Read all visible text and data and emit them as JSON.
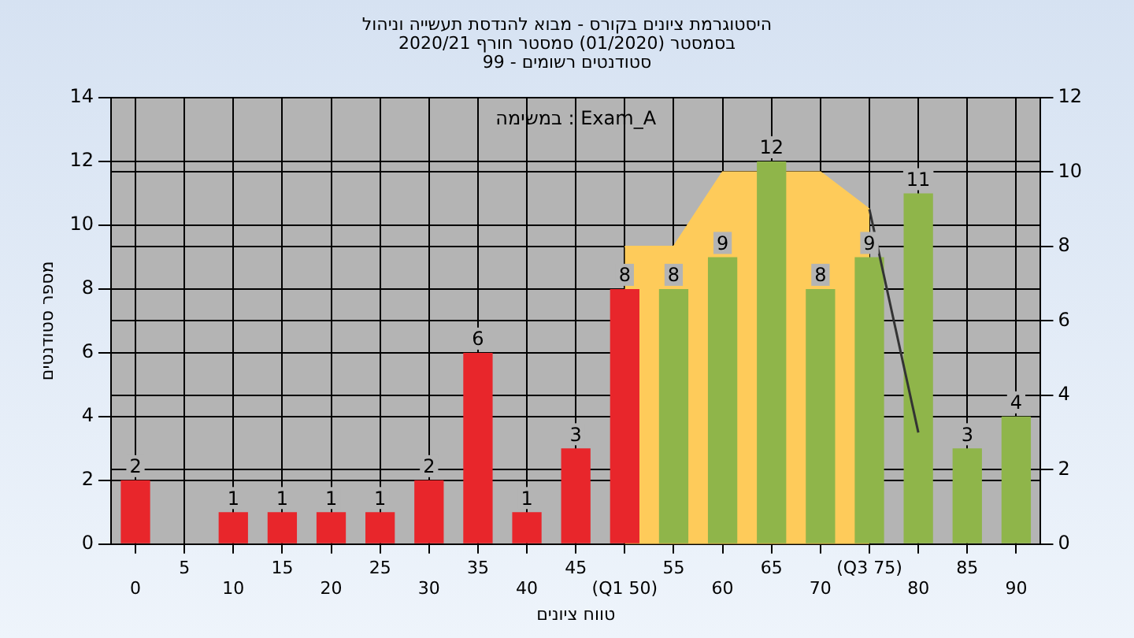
{
  "chart_data": {
    "type": "bar",
    "title": "היסטוגרמת ציונים בקורס - מבוא להנדסת תעשייה וניהול\nבסמסטר  (01/2020)  סמסטר חורף 2020/21\nסטודנטים רשומים - 99",
    "xlabel": "טווח ציונים",
    "ylabel": "מספר סטודנטים",
    "annotations": [
      "במשימה : Exam_A"
    ],
    "categories": [
      "0",
      "5",
      "10",
      "15",
      "20",
      "25",
      "30",
      "35",
      "40",
      "45",
      "(Q1 50)",
      "55",
      "60",
      "65",
      "70",
      "(Q3 75)",
      "80",
      "85",
      "90"
    ],
    "series": [
      {
        "type": "bar",
        "values": [
          2,
          0,
          1,
          1,
          1,
          1,
          2,
          6,
          1,
          3,
          8,
          8,
          9,
          12,
          8,
          9,
          11,
          3,
          4
        ],
        "colors": [
          "#e8262b",
          "#e8262b",
          "#e8262b",
          "#e8262b",
          "#e8262b",
          "#e8262b",
          "#e8262b",
          "#e8262b",
          "#e8262b",
          "#e8262b",
          "#e8262b",
          "#8fb54a",
          "#8fb54a",
          "#8fb54a",
          "#8fb54a",
          "#8fb54a",
          "#8fb54a",
          "#8fb54a",
          "#8fb54a"
        ],
        "value_labels": [
          "2",
          null,
          "1",
          "1",
          "1",
          "1",
          "2",
          "6",
          "1",
          "3",
          "8",
          "8",
          "9",
          "12",
          "8",
          "9",
          "11",
          "3",
          "4"
        ]
      },
      {
        "type": "area",
        "axis": "y2",
        "color": "#fecb5a",
        "values": [
          null,
          null,
          null,
          null,
          null,
          null,
          null,
          null,
          null,
          null,
          8,
          8,
          10,
          10,
          10,
          9,
          null,
          null,
          null
        ]
      },
      {
        "type": "line",
        "axis": "y2",
        "color": "#333333",
        "values": [
          null,
          null,
          null,
          null,
          null,
          null,
          null,
          null,
          null,
          null,
          null,
          null,
          null,
          null,
          null,
          9,
          3,
          null,
          null
        ]
      }
    ],
    "ylim": [
      0,
      14
    ],
    "yticks": [
      0,
      2,
      4,
      6,
      8,
      10,
      12,
      14
    ],
    "y2lim": [
      0,
      12
    ],
    "y2ticks": [
      0,
      2,
      4,
      6,
      8,
      10,
      12
    ],
    "grid": true,
    "legend": false
  }
}
